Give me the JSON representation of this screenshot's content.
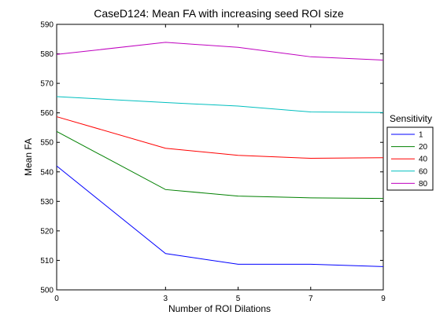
{
  "chart_data": {
    "type": "line",
    "title": "CaseD124: Mean FA with increasing seed ROI size",
    "xlabel": "Number of ROI Dilations",
    "ylabel": "Mean FA",
    "x": [
      0,
      3,
      5,
      7,
      9
    ],
    "xticks": [
      0,
      3,
      5,
      7,
      9
    ],
    "yticks": [
      500,
      510,
      520,
      530,
      540,
      550,
      560,
      570,
      580,
      590
    ],
    "xlim": [
      0,
      9
    ],
    "ylim": [
      500,
      590
    ],
    "grid": false,
    "legend_title": "Sensitivity",
    "legend_position": "right-outside",
    "series": [
      {
        "name": "1",
        "color": "#0000ff",
        "values": [
          542,
          512.3,
          508.7,
          508.7,
          507.9
        ]
      },
      {
        "name": "20",
        "color": "#008000",
        "values": [
          553.7,
          534.0,
          531.8,
          531.2,
          531.0
        ]
      },
      {
        "name": "40",
        "color": "#ff0000",
        "values": [
          558.7,
          548.0,
          545.6,
          544.6,
          544.8
        ]
      },
      {
        "name": "60",
        "color": "#00bfbf",
        "values": [
          565.5,
          563.5,
          562.3,
          560.3,
          560.1
        ]
      },
      {
        "name": "80",
        "color": "#bf00bf",
        "values": [
          579.8,
          583.9,
          582.2,
          579.0,
          577.9
        ]
      }
    ]
  }
}
